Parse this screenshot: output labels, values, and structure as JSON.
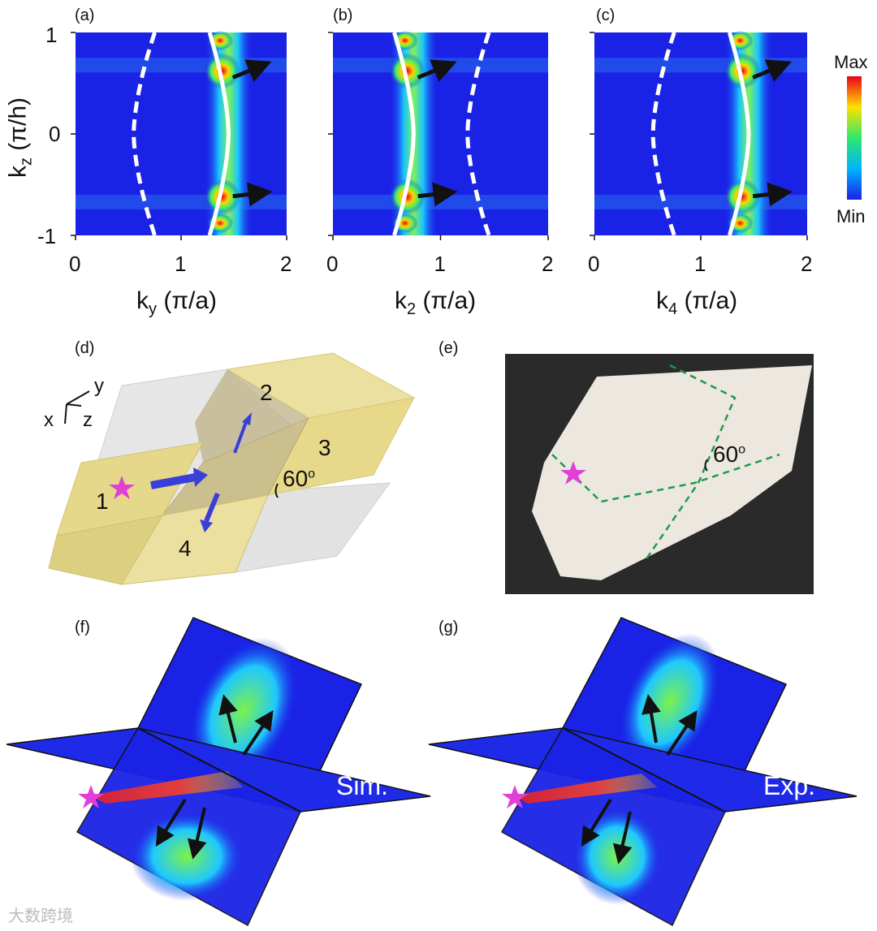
{
  "figure": {
    "panels": {
      "a": {
        "letter": "(a)",
        "xlabel": "k",
        "xsub": "y",
        "xunit": "(π/a)"
      },
      "b": {
        "letter": "(b)",
        "xlabel": "k",
        "xsub": "2",
        "xunit": "(π/a)"
      },
      "c": {
        "letter": "(c)",
        "xlabel": "k",
        "xsub": "4",
        "xunit": "(π/a)"
      },
      "d": {
        "letter": "(d)",
        "ports": [
          "1",
          "2",
          "3",
          "4"
        ],
        "angle": "60",
        "angle_sup": "o",
        "axes": {
          "x": "x",
          "y": "y",
          "z": "z"
        }
      },
      "e": {
        "letter": "(e)",
        "angle": "60",
        "angle_sup": "o"
      },
      "f": {
        "letter": "(f)",
        "tag": "Sim."
      },
      "g": {
        "letter": "(g)",
        "tag": "Exp."
      }
    },
    "ylabel": {
      "main": "k",
      "sub": "z",
      "unit": "(π/h)"
    },
    "yticks": [
      "1",
      "0",
      "-1"
    ],
    "xticks": [
      "0",
      "1",
      "2"
    ],
    "colorbar": {
      "max": "Max",
      "min": "Min"
    },
    "watermark": "大数跨境"
  },
  "colors": {
    "star": "#e23fd6",
    "arrow_blue": "#3a3fd8",
    "block_yellow": "#e7d98a",
    "block_gray": "#dcdcdc",
    "field_blue": "#1a22e6"
  },
  "chart_data": [
    {
      "type": "heatmap",
      "panel": "a",
      "xlim": [
        0,
        2
      ],
      "ylim": [
        -1,
        1
      ],
      "xlabel": "ky (π/a)",
      "ylabel": "kz (π/h)",
      "curves": [
        {
          "style": "solid",
          "x_at_kz0": 1.45,
          "x_at_edges": 1.27
        },
        {
          "style": "dashed",
          "x_at_kz0": 0.55,
          "x_at_edges": 0.75
        }
      ]
    },
    {
      "type": "heatmap",
      "panel": "b",
      "xlim": [
        0,
        2
      ],
      "ylim": [
        -1,
        1
      ],
      "xlabel": "k2 (π/a)",
      "ylabel": "kz (π/h)",
      "curves": [
        {
          "style": "solid",
          "x_at_kz0": 0.75,
          "x_at_edges": 0.57
        },
        {
          "style": "dashed",
          "x_at_kz0": 1.25,
          "x_at_edges": 1.45
        }
      ]
    },
    {
      "type": "heatmap",
      "panel": "c",
      "xlim": [
        0,
        2
      ],
      "ylim": [
        -1,
        1
      ],
      "xlabel": "k4 (π/a)",
      "ylabel": "kz (π/h)",
      "curves": [
        {
          "style": "solid",
          "x_at_kz0": 1.45,
          "x_at_edges": 1.27
        },
        {
          "style": "dashed",
          "x_at_kz0": 0.55,
          "x_at_edges": 0.75
        }
      ]
    }
  ]
}
